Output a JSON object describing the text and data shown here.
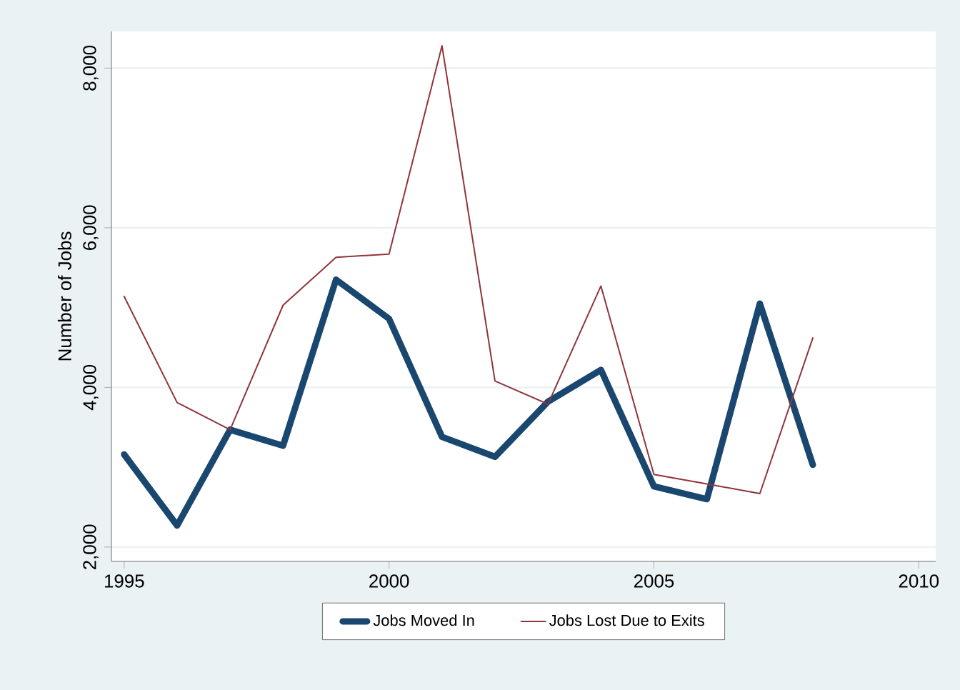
{
  "chart_data": {
    "type": "line",
    "x": [
      1995,
      1996,
      1997,
      1998,
      1999,
      2000,
      2001,
      2002,
      2003,
      2004,
      2005,
      2006,
      2007,
      2008
    ],
    "ylabel": "Number of Jobs",
    "series": [
      {
        "name": "Jobs Moved In",
        "color": "#1a476f",
        "values": [
          3160,
          2270,
          3470,
          3270,
          5350,
          4860,
          3380,
          3130,
          3820,
          4220,
          2760,
          2600,
          5050,
          3030
        ]
      },
      {
        "name": "Jobs Lost Due to Exits",
        "color": "#90353b",
        "values": [
          5140,
          3810,
          3470,
          5030,
          5630,
          5670,
          8280,
          4080,
          3790,
          5270,
          2910,
          2790,
          2670,
          4620
        ]
      }
    ],
    "xlim": [
      1994.76,
      2010.32
    ],
    "xticks": [
      1995,
      2000,
      2005,
      2010
    ],
    "ylim": [
      1820,
      8460
    ],
    "yticks": [
      {
        "value": 2000,
        "label": "2,000"
      },
      {
        "value": 4000,
        "label": "4,000"
      },
      {
        "value": 6000,
        "label": "6,000"
      },
      {
        "value": 8000,
        "label": "8,000"
      }
    ],
    "grid": "y",
    "legend": "bottom",
    "marker": "none",
    "line_style": "solid"
  }
}
